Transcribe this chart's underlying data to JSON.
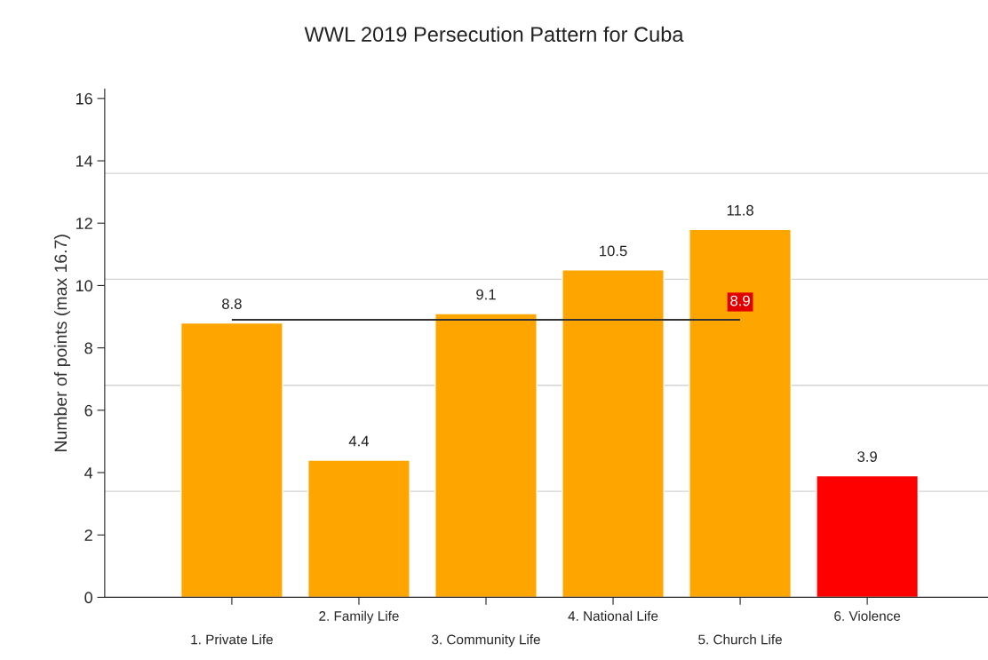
{
  "chart_data": {
    "type": "bar",
    "title": "WWL 2019 Persecution Pattern for Cuba",
    "ylabel": "Number of points (max 16.7)",
    "categories": [
      "1. Private Life",
      "2. Family Life",
      "3. Community Life",
      "4. National Life",
      "5. Church Life",
      "6. Violence"
    ],
    "values": [
      8.8,
      4.4,
      9.1,
      10.5,
      11.8,
      3.9
    ],
    "colors": [
      "#ffa500",
      "#ffa500",
      "#ffa500",
      "#ffa500",
      "#ffa500",
      "#ff0000"
    ],
    "data_labels": true,
    "ylim": [
      0,
      16.3
    ],
    "yticks": [
      0,
      2,
      4,
      6,
      8,
      10,
      12,
      14,
      16
    ],
    "ref_lines": [
      {
        "axis": "y",
        "value": 3.4,
        "color": "#d3d3d3"
      },
      {
        "axis": "y",
        "value": 6.8,
        "color": "#d3d3d3"
      },
      {
        "axis": "y",
        "value": 10.2,
        "color": "#d3d3d3"
      },
      {
        "axis": "y",
        "value": 13.6,
        "color": "#d3d3d3"
      },
      {
        "axis": "y",
        "value": 8.9,
        "label": "8.9",
        "color": "#333333"
      }
    ]
  }
}
